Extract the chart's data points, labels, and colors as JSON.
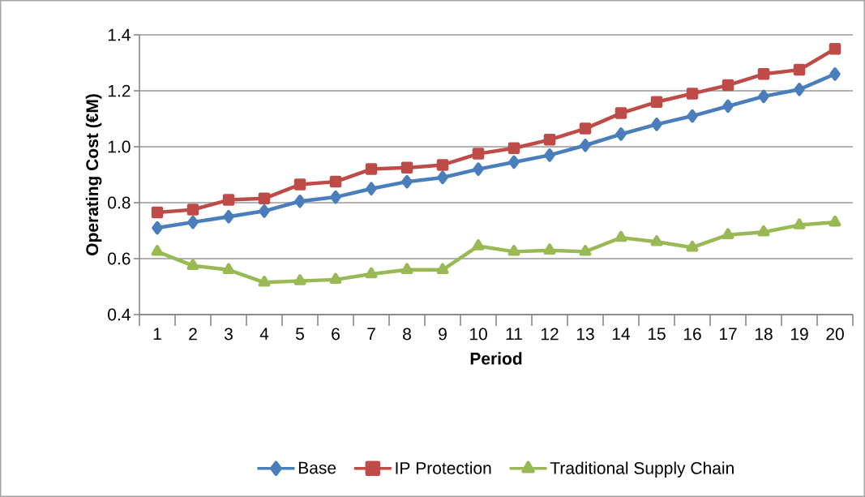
{
  "chart_data": {
    "type": "line",
    "xlabel": "Period",
    "ylabel": "Operating Cost (€M)",
    "categories": [
      "1",
      "2",
      "3",
      "4",
      "5",
      "6",
      "7",
      "8",
      "9",
      "10",
      "11",
      "12",
      "13",
      "14",
      "15",
      "16",
      "17",
      "18",
      "19",
      "20"
    ],
    "series": [
      {
        "name": "Base",
        "color": "#4a7ebb",
        "marker": "diamond",
        "values": [
          0.71,
          0.73,
          0.75,
          0.77,
          0.805,
          0.82,
          0.85,
          0.875,
          0.89,
          0.92,
          0.945,
          0.97,
          1.005,
          1.045,
          1.08,
          1.11,
          1.145,
          1.18,
          1.205,
          1.26
        ]
      },
      {
        "name": "IP Protection",
        "color": "#be4b48",
        "marker": "square",
        "values": [
          0.765,
          0.775,
          0.81,
          0.815,
          0.865,
          0.875,
          0.92,
          0.925,
          0.935,
          0.975,
          0.995,
          1.025,
          1.065,
          1.12,
          1.16,
          1.19,
          1.22,
          1.26,
          1.275,
          1.35
        ]
      },
      {
        "name": "Traditional Supply Chain",
        "color": "#98b954",
        "marker": "triangle",
        "values": [
          0.625,
          0.575,
          0.56,
          0.515,
          0.52,
          0.525,
          0.545,
          0.56,
          0.56,
          0.645,
          0.625,
          0.63,
          0.625,
          0.675,
          0.66,
          0.64,
          0.685,
          0.695,
          0.72,
          0.73
        ]
      }
    ],
    "ylim": [
      0.4,
      1.4
    ],
    "yticks": [
      {
        "value": 0.4,
        "label": "0.4"
      },
      {
        "value": 0.6,
        "label": "0.6"
      },
      {
        "value": 0.8,
        "label": "0.8"
      },
      {
        "value": 1.0,
        "label": "1.0"
      },
      {
        "value": 1.2,
        "label": "1.2"
      },
      {
        "value": 1.4,
        "label": "1.4"
      }
    ],
    "grid": "y",
    "legend": "bottom",
    "line_style": "solid"
  }
}
